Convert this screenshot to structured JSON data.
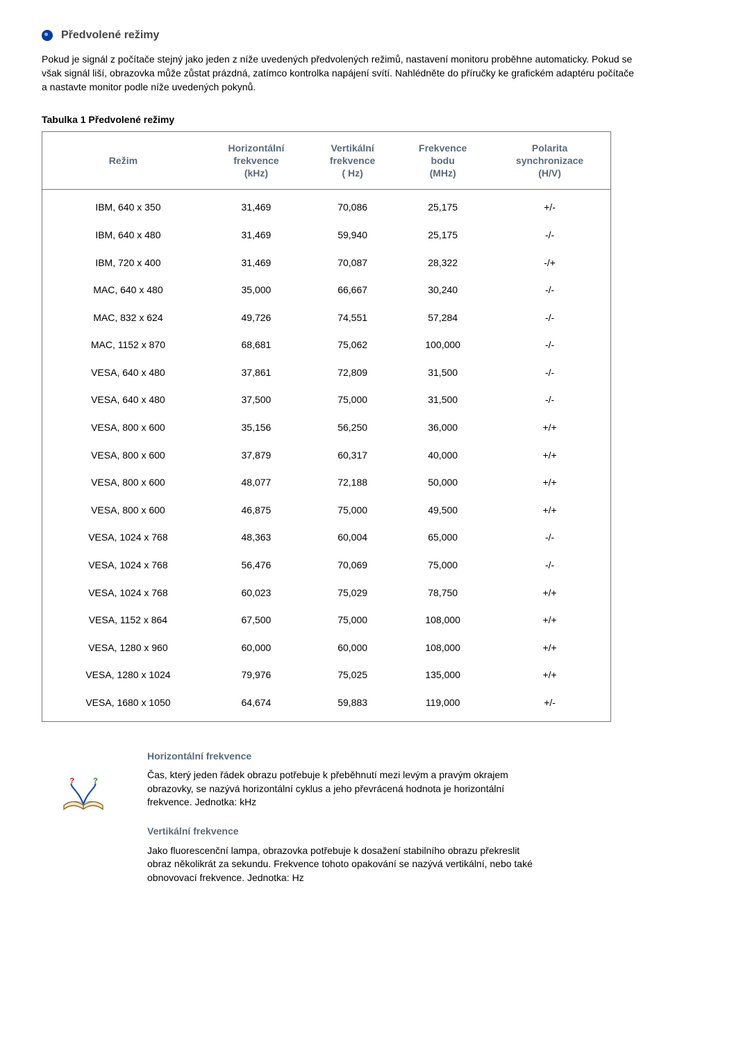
{
  "header": {
    "title": "Předvolené režimy"
  },
  "intro": "Pokud je signál z počítače stejný jako jeden z níže uvedených předvolených režimů, nastavení monitoru proběhne automaticky. Pokud se však signál liší, obrazovka může zůstat prázdná, zatímco kontrolka napájení svítí. Nahlédněte do příručky ke grafickém adaptéru počítače a nastavte monitor podle níže uvedených pokynů.",
  "table": {
    "caption": "Tabulka 1 Předvolené režimy",
    "columns": {
      "mode": {
        "l1": "Režim",
        "l2": "",
        "l3": ""
      },
      "hfreq": {
        "l1": "Horizontální",
        "l2": "frekvence",
        "l3": "(kHz)"
      },
      "vfreq": {
        "l1": "Vertikální",
        "l2": "frekvence",
        "l3": "( Hz)"
      },
      "pclk": {
        "l1": "Frekvence",
        "l2": "bodu",
        "l3": "(MHz)"
      },
      "pol": {
        "l1": "Polarita",
        "l2": "synchronizace",
        "l3": "(H/V)"
      }
    },
    "rows": [
      {
        "mode": "IBM, 640 x 350",
        "hfreq": "31,469",
        "vfreq": "70,086",
        "pclk": "25,175",
        "pol": "+/-"
      },
      {
        "mode": "IBM, 640 x 480",
        "hfreq": "31,469",
        "vfreq": "59,940",
        "pclk": "25,175",
        "pol": "-/-"
      },
      {
        "mode": "IBM, 720 x 400",
        "hfreq": "31,469",
        "vfreq": "70,087",
        "pclk": "28,322",
        "pol": "-/+"
      },
      {
        "mode": "MAC, 640 x 480",
        "hfreq": "35,000",
        "vfreq": "66,667",
        "pclk": "30,240",
        "pol": "-/-"
      },
      {
        "mode": "MAC, 832 x 624",
        "hfreq": "49,726",
        "vfreq": "74,551",
        "pclk": "57,284",
        "pol": "-/-"
      },
      {
        "mode": "MAC, 1152 x 870",
        "hfreq": "68,681",
        "vfreq": "75,062",
        "pclk": "100,000",
        "pol": "-/-"
      },
      {
        "mode": "VESA, 640 x 480",
        "hfreq": "37,861",
        "vfreq": "72,809",
        "pclk": "31,500",
        "pol": "-/-"
      },
      {
        "mode": "VESA, 640 x 480",
        "hfreq": "37,500",
        "vfreq": "75,000",
        "pclk": "31,500",
        "pol": "-/-"
      },
      {
        "mode": "VESA, 800 x 600",
        "hfreq": "35,156",
        "vfreq": "56,250",
        "pclk": "36,000",
        "pol": "+/+"
      },
      {
        "mode": "VESA, 800 x 600",
        "hfreq": "37,879",
        "vfreq": "60,317",
        "pclk": "40,000",
        "pol": "+/+"
      },
      {
        "mode": "VESA, 800 x 600",
        "hfreq": "48,077",
        "vfreq": "72,188",
        "pclk": "50,000",
        "pol": "+/+"
      },
      {
        "mode": "VESA, 800 x 600",
        "hfreq": "46,875",
        "vfreq": "75,000",
        "pclk": "49,500",
        "pol": "+/+"
      },
      {
        "mode": "VESA, 1024 x 768",
        "hfreq": "48,363",
        "vfreq": "60,004",
        "pclk": "65,000",
        "pol": "-/-"
      },
      {
        "mode": "VESA, 1024 x 768",
        "hfreq": "56,476",
        "vfreq": "70,069",
        "pclk": "75,000",
        "pol": "-/-"
      },
      {
        "mode": "VESA, 1024 x 768",
        "hfreq": "60,023",
        "vfreq": "75,029",
        "pclk": "78,750",
        "pol": "+/+"
      },
      {
        "mode": "VESA, 1152 x 864",
        "hfreq": "67,500",
        "vfreq": "75,000",
        "pclk": "108,000",
        "pol": "+/+"
      },
      {
        "mode": "VESA, 1280 x 960",
        "hfreq": "60,000",
        "vfreq": "60,000",
        "pclk": "108,000",
        "pol": "+/+"
      },
      {
        "mode": "VESA, 1280 x 1024",
        "hfreq": "79,976",
        "vfreq": "75,025",
        "pclk": "135,000",
        "pol": "+/+"
      },
      {
        "mode": "VESA, 1680 x 1050",
        "hfreq": "64,674",
        "vfreq": "59,883",
        "pclk": "119,000",
        "pol": "+/-"
      }
    ]
  },
  "definitions": {
    "horiz": {
      "heading": "Horizontální frekvence",
      "body": "Čas, který jeden řádek obrazu potřebuje k přeběhnutí mezi levým a pravým okrajem obrazovky, se nazývá horizontální cyklus a jeho převrácená hodnota je horizontální frekvence. Jednotka: kHz"
    },
    "vert": {
      "heading": "Vertikální frekvence",
      "body": "Jako fluorescenční lampa, obrazovka potřebuje k dosažení stabilního obrazu překreslit obraz několikrát za sekundu. Frekvence tohoto opakování se nazývá vertikální, nebo také obnovovací frekvence. Jednotka: Hz"
    }
  }
}
